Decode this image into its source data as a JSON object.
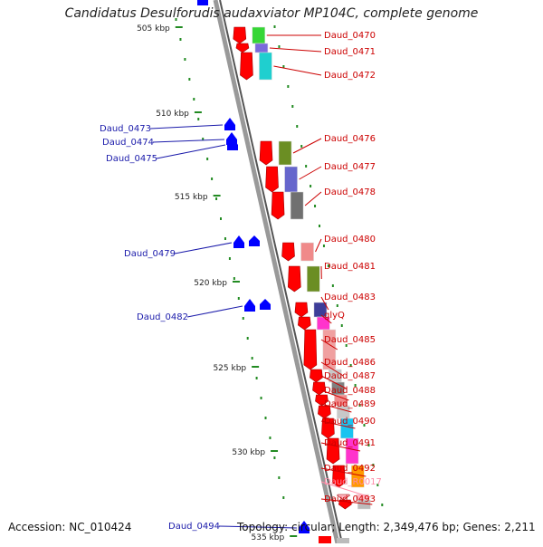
{
  "title": "Candidatus Desulforudis audaxviator MP104C, complete genome",
  "footer": {
    "accession": "Accession: NC_010424",
    "topology": "Topology: circular; Length: 2,349,476 bp; Genes: 2,211"
  },
  "colors": {
    "forward_arrow": "#ff0000",
    "reverse_arrow": "#0000ff",
    "forward_label": "#cc0000",
    "reverse_label": "#1a1aaa",
    "rna_label": "#ff8ca8",
    "backbone": "#888888",
    "tick": "#228b22"
  },
  "ruler": [
    {
      "label": "505 kbp"
    },
    {
      "label": "510 kbp"
    },
    {
      "label": "515 kbp"
    },
    {
      "label": "520 kbp"
    },
    {
      "label": "525 kbp"
    },
    {
      "label": "530 kbp"
    },
    {
      "label": "535 kbp"
    }
  ],
  "forward_genes": [
    {
      "label": "Daud_0470"
    },
    {
      "label": "Daud_0471"
    },
    {
      "label": "Daud_0472"
    },
    {
      "label": "Daud_0476"
    },
    {
      "label": "Daud_0477"
    },
    {
      "label": "Daud_0478"
    },
    {
      "label": "Daud_0480"
    },
    {
      "label": "Daud_0481"
    },
    {
      "label": "Daud_0483"
    },
    {
      "label": "glyQ"
    },
    {
      "label": "Daud_0485"
    },
    {
      "label": "Daud_0486"
    },
    {
      "label": "Daud_0487"
    },
    {
      "label": "Daud_0488"
    },
    {
      "label": "Daud_0489"
    },
    {
      "label": "Daud_0490"
    },
    {
      "label": "Daud_0491"
    },
    {
      "label": "Daud_0492"
    },
    {
      "label": "Daud_R0017"
    },
    {
      "label": "Daud_0493"
    }
  ],
  "reverse_genes": [
    {
      "label": "Daud_0473"
    },
    {
      "label": "Daud_0474"
    },
    {
      "label": "Daud_0475"
    },
    {
      "label": "Daud_0479"
    },
    {
      "label": "Daud_0482"
    },
    {
      "label": "Daud_0494"
    }
  ]
}
